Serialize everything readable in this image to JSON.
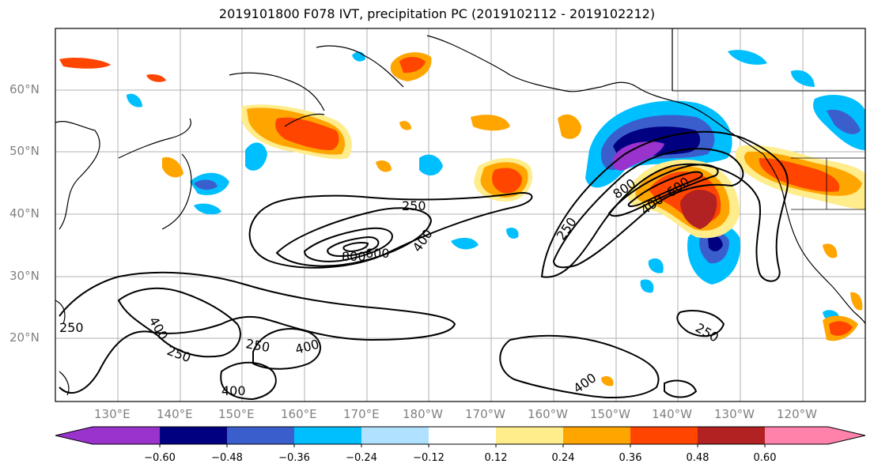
{
  "title": "2019101800 F078 IVT, precipitation PC (2019102112 - 2019102212)",
  "lat_labels": [
    "60°N",
    "50°N",
    "40°N",
    "30°N",
    "20°N"
  ],
  "lon_labels": [
    "130°E",
    "140°E",
    "150°E",
    "160°E",
    "170°E",
    "180°W",
    "170°W",
    "160°W",
    "150°W",
    "140°W",
    "130°W",
    "120°W"
  ],
  "contour_labels": [
    "250",
    "800",
    "600",
    "400",
    "250",
    "800",
    "400",
    "600",
    "250",
    "400",
    "250",
    "250",
    "400",
    "400",
    "250",
    "400"
  ],
  "colorbar": {
    "ticks": [
      "−0.60",
      "−0.48",
      "−0.36",
      "−0.24",
      "−0.12",
      "0.12",
      "0.24",
      "0.36",
      "0.48",
      "0.60"
    ],
    "colors": [
      "#9a32cd",
      "#000080",
      "#3a5fcd",
      "#00bfff",
      "#b0e2ff",
      "#ffffff",
      "#ffec8b",
      "#ffa500",
      "#ff4500",
      "#b22222",
      "#ff82ab"
    ]
  },
  "colors": {
    "ivt_contour": "#000000",
    "grid": "#b0b0b0",
    "coast": "#000000",
    "axis_label": "#808080"
  }
}
